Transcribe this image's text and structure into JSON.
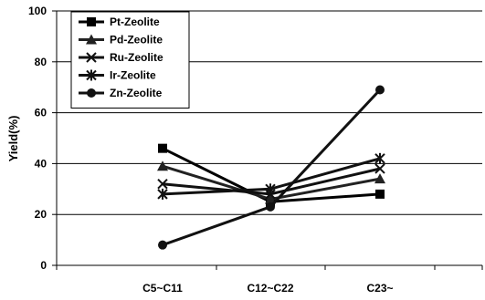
{
  "chart_data": {
    "type": "line",
    "title": "",
    "xlabel": "",
    "ylabel": "Yield(%)",
    "categories": [
      "C5~C11",
      "C12~C22",
      "C23~"
    ],
    "ylim": [
      0,
      100
    ],
    "yticks": [
      0,
      20,
      40,
      60,
      80,
      100
    ],
    "grid": "horizontal",
    "legend": "top-left",
    "series": [
      {
        "name": "Pt-Zeolite",
        "marker": "square",
        "color": "#000000",
        "values": [
          46,
          25,
          28
        ]
      },
      {
        "name": "Pd-Zeolite",
        "marker": "triangle",
        "color": "#222222",
        "values": [
          39,
          26,
          34
        ]
      },
      {
        "name": "Ru-Zeolite",
        "marker": "x",
        "color": "#111111",
        "values": [
          32,
          28,
          38
        ]
      },
      {
        "name": "Ir-Zeolite",
        "marker": "star",
        "color": "#111111",
        "values": [
          28,
          30,
          42
        ]
      },
      {
        "name": "Zn-Zeolite",
        "marker": "circle",
        "color": "#111111",
        "values": [
          8,
          23,
          69
        ]
      }
    ]
  }
}
